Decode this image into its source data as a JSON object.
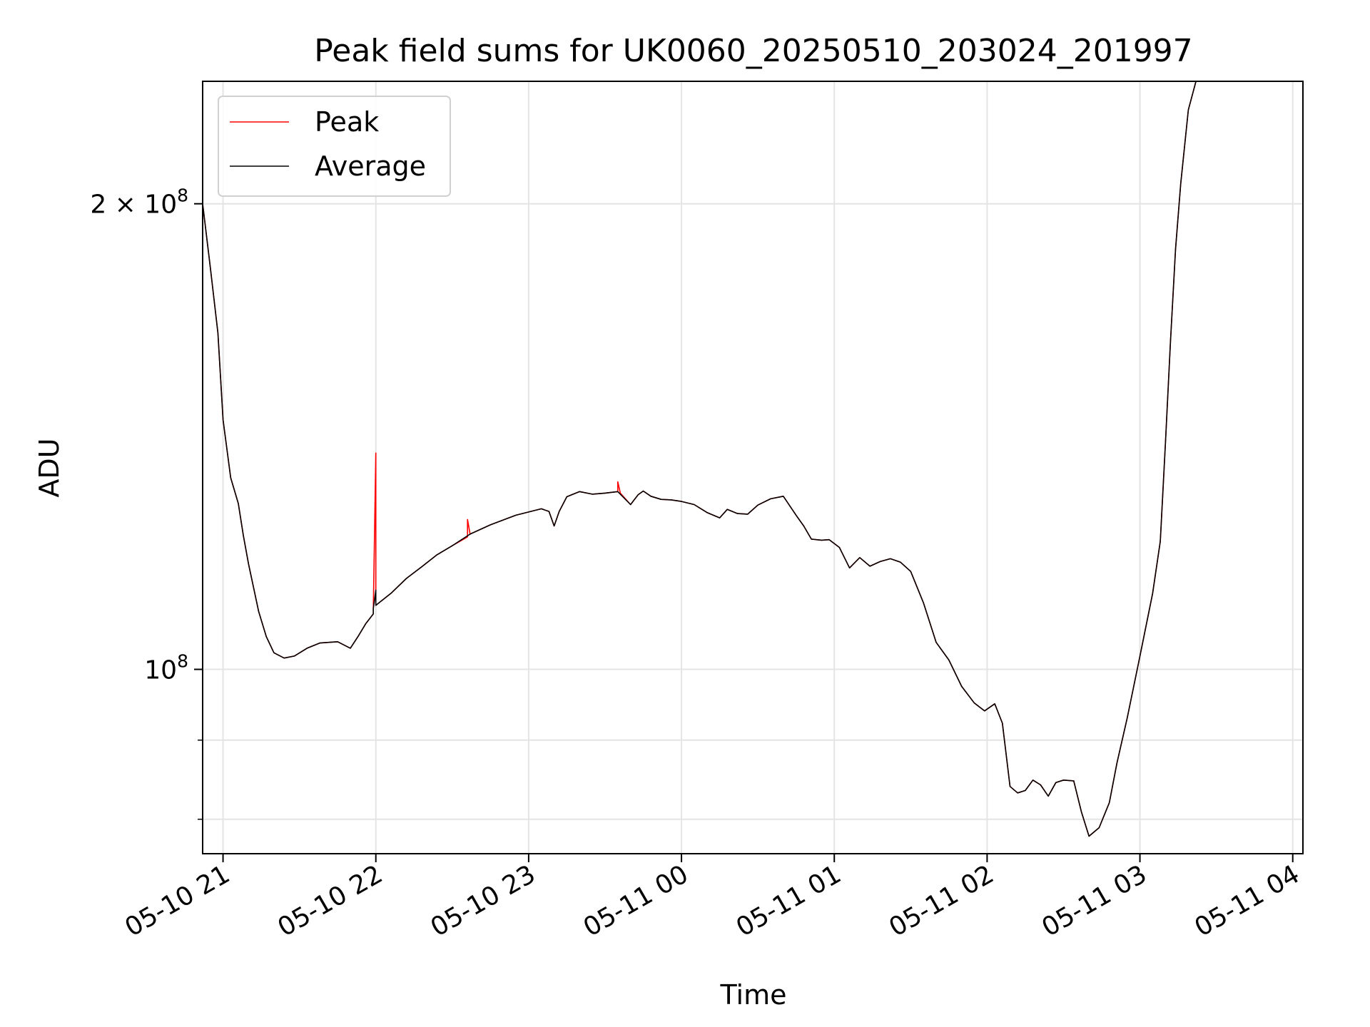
{
  "chart_data": {
    "type": "line",
    "title": "Peak field sums for UK0060_20250510_203024_201997",
    "xlabel": "Time",
    "ylabel": "ADU",
    "y_scale": "log",
    "grid": true,
    "legend_placement": "top-left",
    "x_tick_labels": [
      "05-10 21",
      "05-10 22",
      "05-10 23",
      "05-11 00",
      "05-11 01",
      "05-11 02",
      "05-11 03",
      "05-11 04"
    ],
    "x_ticks": [
      "2025-05-10 21:00",
      "2025-05-10 22:00",
      "2025-05-10 23:00",
      "2025-05-11 00:00",
      "2025-05-11 01:00",
      "2025-05-11 02:00",
      "2025-05-11 03:00",
      "2025-05-11 04:00"
    ],
    "xlim": [
      "2025-05-10 20:52",
      "2025-05-11 04:04"
    ],
    "y_ticks": [
      {
        "value": 200000000,
        "label_base": "2 × 10",
        "label_exp": "8"
      },
      {
        "value": 100000000,
        "label_base": "10",
        "label_exp": "8"
      }
    ],
    "y_minor_ticks": [
      90000000,
      80000000
    ],
    "ylim": [
      76000000,
      240000000
    ],
    "series": [
      {
        "name": "Peak",
        "color": "#ff0000",
        "x": [
          "2025-05-10 20:52",
          "2025-05-10 20:55",
          "2025-05-10 20:58",
          "2025-05-10 21:00",
          "2025-05-10 21:03",
          "2025-05-10 21:06",
          "2025-05-10 21:08",
          "2025-05-10 21:10",
          "2025-05-10 21:14",
          "2025-05-10 21:17",
          "2025-05-10 21:20",
          "2025-05-10 21:24",
          "2025-05-10 21:28",
          "2025-05-10 21:33",
          "2025-05-10 21:38",
          "2025-05-10 21:45",
          "2025-05-10 21:50",
          "2025-05-10 21:53",
          "2025-05-10 21:56",
          "2025-05-10 21:59",
          "2025-05-10 21:59",
          "2025-05-10 22:00",
          "2025-05-10 22:00",
          "2025-05-10 22:06",
          "2025-05-10 22:12",
          "2025-05-10 22:18",
          "2025-05-10 22:24",
          "2025-05-10 22:30",
          "2025-05-10 22:36",
          "2025-05-10 22:36",
          "2025-05-10 22:37",
          "2025-05-10 22:45",
          "2025-05-10 22:55",
          "2025-05-10 23:05",
          "2025-05-10 23:08",
          "2025-05-10 23:10",
          "2025-05-10 23:12",
          "2025-05-10 23:15",
          "2025-05-10 23:20",
          "2025-05-10 23:25",
          "2025-05-10 23:30",
          "2025-05-10 23:35",
          "2025-05-10 23:35",
          "2025-05-10 23:36",
          "2025-05-10 23:40",
          "2025-05-10 23:43",
          "2025-05-10 23:45",
          "2025-05-10 23:48",
          "2025-05-10 23:52",
          "2025-05-10 23:56",
          "2025-05-11 00:00",
          "2025-05-11 00:05",
          "2025-05-11 00:10",
          "2025-05-11 00:15",
          "2025-05-11 00:18",
          "2025-05-11 00:22",
          "2025-05-11 00:26",
          "2025-05-11 00:30",
          "2025-05-11 00:35",
          "2025-05-11 00:40",
          "2025-05-11 00:45",
          "2025-05-11 00:48",
          "2025-05-11 00:51",
          "2025-05-11 00:55",
          "2025-05-11 00:58",
          "2025-05-11 01:02",
          "2025-05-11 01:06",
          "2025-05-11 01:10",
          "2025-05-11 01:14",
          "2025-05-11 01:18",
          "2025-05-11 01:22",
          "2025-05-11 01:26",
          "2025-05-11 01:30",
          "2025-05-11 01:35",
          "2025-05-11 01:40",
          "2025-05-11 01:45",
          "2025-05-11 01:50",
          "2025-05-11 01:55",
          "2025-05-11 01:59",
          "2025-05-11 02:03",
          "2025-05-11 02:06",
          "2025-05-11 02:09",
          "2025-05-11 02:12",
          "2025-05-11 02:15",
          "2025-05-11 02:18",
          "2025-05-11 02:21",
          "2025-05-11 02:24",
          "2025-05-11 02:27",
          "2025-05-11 02:30",
          "2025-05-11 02:34",
          "2025-05-11 02:37",
          "2025-05-11 02:40",
          "2025-05-11 02:44",
          "2025-05-11 02:48",
          "2025-05-11 02:51",
          "2025-05-11 02:55",
          "2025-05-11 03:00",
          "2025-05-11 03:05",
          "2025-05-11 03:08",
          "2025-05-11 03:10",
          "2025-05-11 03:12",
          "2025-05-11 03:14",
          "2025-05-11 03:16",
          "2025-05-11 03:19",
          "2025-05-11 03:22"
        ],
        "y": [
          200000000,
          182000000,
          165000000,
          145000000,
          133000000,
          128000000,
          122000000,
          117000000,
          109000000,
          105000000,
          102500000,
          101700000,
          102000000,
          103200000,
          104000000,
          104200000,
          103200000,
          105000000,
          107000000,
          108600000,
          109500000,
          138000000,
          110000000,
          112000000,
          114500000,
          116500000,
          118600000,
          120200000,
          121800000,
          125000000,
          122300000,
          124000000,
          125800000,
          127000000,
          126500000,
          123800000,
          126500000,
          129300000,
          130300000,
          129800000,
          130000000,
          130300000,
          132200000,
          130000000,
          127800000,
          129700000,
          130400000,
          129400000,
          128800000,
          128700000,
          128400000,
          127800000,
          126300000,
          125300000,
          126900000,
          126100000,
          126000000,
          127700000,
          128900000,
          129400000,
          125800000,
          123800000,
          121400000,
          121200000,
          121300000,
          119900000,
          116300000,
          118100000,
          116600000,
          117400000,
          117900000,
          117300000,
          115700000,
          110400000,
          104100000,
          101400000,
          97500000,
          95100000,
          94000000,
          95000000,
          92300000,
          84000000,
          83200000,
          83500000,
          84800000,
          84200000,
          82800000,
          84500000,
          84800000,
          84700000,
          80900000,
          78000000,
          79000000,
          82000000,
          87000000,
          93000000,
          102000000,
          112000000,
          121000000,
          140000000,
          163000000,
          187000000,
          206000000,
          230000000,
          240000000
        ]
      },
      {
        "name": "Average",
        "color": "#000000",
        "x": [
          "2025-05-10 20:52",
          "2025-05-10 20:55",
          "2025-05-10 20:58",
          "2025-05-10 21:00",
          "2025-05-10 21:03",
          "2025-05-10 21:06",
          "2025-05-10 21:08",
          "2025-05-10 21:10",
          "2025-05-10 21:14",
          "2025-05-10 21:17",
          "2025-05-10 21:20",
          "2025-05-10 21:24",
          "2025-05-10 21:28",
          "2025-05-10 21:33",
          "2025-05-10 21:38",
          "2025-05-10 21:45",
          "2025-05-10 21:50",
          "2025-05-10 21:53",
          "2025-05-10 21:56",
          "2025-05-10 21:59",
          "2025-05-10 21:59",
          "2025-05-10 22:00",
          "2025-05-10 22:00",
          "2025-05-10 22:06",
          "2025-05-10 22:12",
          "2025-05-10 22:18",
          "2025-05-10 22:24",
          "2025-05-10 22:30",
          "2025-05-10 22:37",
          "2025-05-10 22:45",
          "2025-05-10 22:55",
          "2025-05-10 23:05",
          "2025-05-10 23:08",
          "2025-05-10 23:10",
          "2025-05-10 23:12",
          "2025-05-10 23:15",
          "2025-05-10 23:20",
          "2025-05-10 23:25",
          "2025-05-10 23:30",
          "2025-05-10 23:35",
          "2025-05-10 23:40",
          "2025-05-10 23:43",
          "2025-05-10 23:45",
          "2025-05-10 23:48",
          "2025-05-10 23:52",
          "2025-05-10 23:56",
          "2025-05-11 00:00",
          "2025-05-11 00:05",
          "2025-05-11 00:10",
          "2025-05-11 00:15",
          "2025-05-11 00:18",
          "2025-05-11 00:22",
          "2025-05-11 00:26",
          "2025-05-11 00:30",
          "2025-05-11 00:35",
          "2025-05-11 00:40",
          "2025-05-11 00:45",
          "2025-05-11 00:48",
          "2025-05-11 00:51",
          "2025-05-11 00:55",
          "2025-05-11 00:58",
          "2025-05-11 01:02",
          "2025-05-11 01:06",
          "2025-05-11 01:10",
          "2025-05-11 01:14",
          "2025-05-11 01:18",
          "2025-05-11 01:22",
          "2025-05-11 01:26",
          "2025-05-11 01:30",
          "2025-05-11 01:35",
          "2025-05-11 01:40",
          "2025-05-11 01:45",
          "2025-05-11 01:50",
          "2025-05-11 01:55",
          "2025-05-11 01:59",
          "2025-05-11 02:03",
          "2025-05-11 02:06",
          "2025-05-11 02:09",
          "2025-05-11 02:12",
          "2025-05-11 02:15",
          "2025-05-11 02:18",
          "2025-05-11 02:21",
          "2025-05-11 02:24",
          "2025-05-11 02:27",
          "2025-05-11 02:30",
          "2025-05-11 02:34",
          "2025-05-11 02:37",
          "2025-05-11 02:40",
          "2025-05-11 02:44",
          "2025-05-11 02:48",
          "2025-05-11 02:51",
          "2025-05-11 02:55",
          "2025-05-11 03:00",
          "2025-05-11 03:05",
          "2025-05-11 03:08",
          "2025-05-11 03:10",
          "2025-05-11 03:12",
          "2025-05-11 03:14",
          "2025-05-11 03:16",
          "2025-05-11 03:19",
          "2025-05-11 03:22"
        ],
        "y": [
          200000000,
          182000000,
          165000000,
          145000000,
          133000000,
          128000000,
          122000000,
          117000000,
          109000000,
          105000000,
          102500000,
          101700000,
          102000000,
          103200000,
          104000000,
          104200000,
          103200000,
          105000000,
          107000000,
          108600000,
          109500000,
          112500000,
          110000000,
          112000000,
          114500000,
          116500000,
          118600000,
          120200000,
          122300000,
          124000000,
          125800000,
          127000000,
          126500000,
          123800000,
          126500000,
          129300000,
          130300000,
          129800000,
          130000000,
          130300000,
          127800000,
          129700000,
          130400000,
          129400000,
          128800000,
          128700000,
          128400000,
          127800000,
          126300000,
          125300000,
          126900000,
          126100000,
          126000000,
          127700000,
          128900000,
          129400000,
          125800000,
          123800000,
          121400000,
          121200000,
          121300000,
          119900000,
          116300000,
          118100000,
          116600000,
          117400000,
          117900000,
          117300000,
          115700000,
          110400000,
          104100000,
          101400000,
          97500000,
          95100000,
          94000000,
          95000000,
          92300000,
          84000000,
          83200000,
          83500000,
          84800000,
          84200000,
          82800000,
          84500000,
          84800000,
          84700000,
          80900000,
          78000000,
          79000000,
          82000000,
          87000000,
          93000000,
          102000000,
          112000000,
          121000000,
          140000000,
          163000000,
          187000000,
          206000000,
          230000000,
          240000000
        ]
      }
    ]
  }
}
